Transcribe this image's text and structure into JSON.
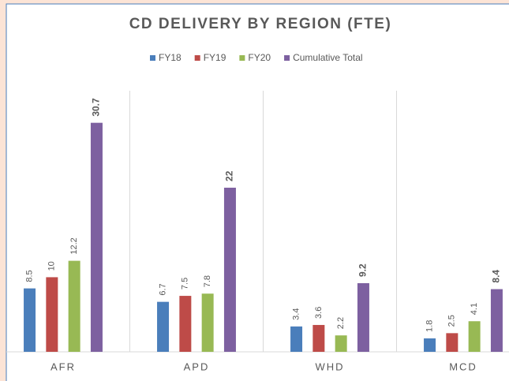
{
  "chart_data": {
    "type": "bar",
    "title": "CD DELIVERY BY REGION (FTE)",
    "categories": [
      "AFR",
      "APD",
      "WHD",
      "MCD"
    ],
    "series": [
      {
        "name": "FY18",
        "color": "#4a7ebb",
        "values": [
          8.5,
          6.7,
          3.4,
          1.8
        ]
      },
      {
        "name": "FY19",
        "color": "#be4b48",
        "values": [
          10,
          7.5,
          3.6,
          2.5
        ]
      },
      {
        "name": "FY20",
        "color": "#98b954",
        "values": [
          12.2,
          7.8,
          2.2,
          4.1
        ]
      },
      {
        "name": "Cumulative Total",
        "color": "#7d60a0",
        "values": [
          30.7,
          22,
          9.2,
          8.4
        ]
      }
    ],
    "ylim": [
      0,
      35
    ],
    "legend": "top"
  }
}
